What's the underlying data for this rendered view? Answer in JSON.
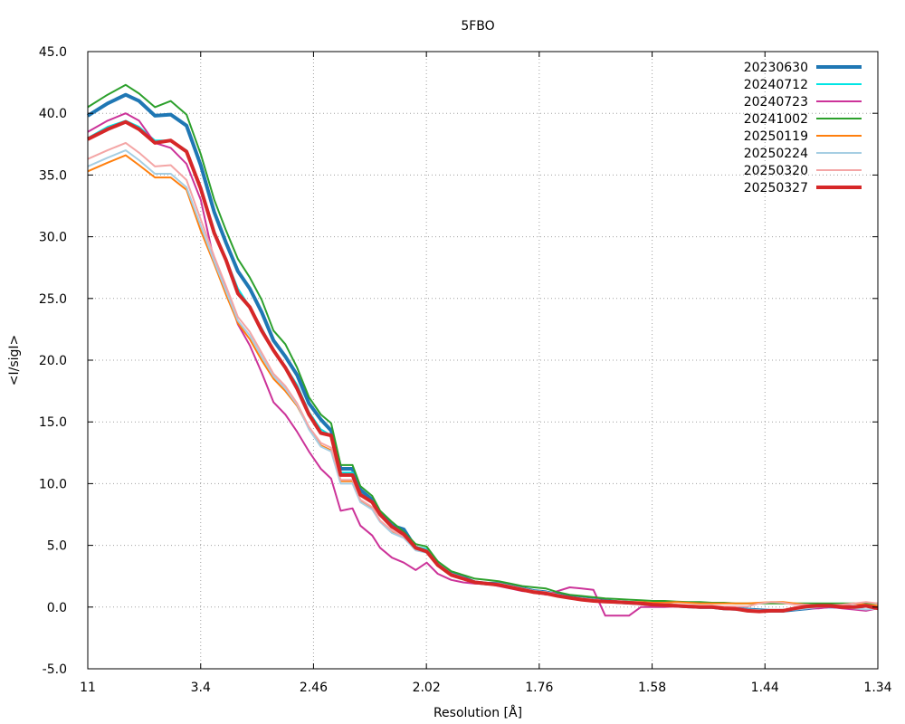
{
  "chart_data": {
    "type": "line",
    "title": "5FBO",
    "xlabel": "Resolution [Å]",
    "ylabel": "<I/sigI>",
    "xlim": [
      0,
      100
    ],
    "ylim": [
      -5,
      45
    ],
    "x_ticks": [
      {
        "pos": 0,
        "label": "11"
      },
      {
        "pos": 14.29,
        "label": "3.4"
      },
      {
        "pos": 28.57,
        "label": "2.46"
      },
      {
        "pos": 42.86,
        "label": "2.02"
      },
      {
        "pos": 57.14,
        "label": "1.76"
      },
      {
        "pos": 71.43,
        "label": "1.58"
      },
      {
        "pos": 85.71,
        "label": "1.44"
      },
      {
        "pos": 100,
        "label": "1.34"
      }
    ],
    "y_ticks": [
      "-5.0",
      "0.0",
      "5.0",
      "10.0",
      "15.0",
      "20.0",
      "25.0",
      "30.0",
      "35.0",
      "40.0",
      "45.0"
    ],
    "grid": true,
    "legend_position": "top-right",
    "series": [
      {
        "name": "20230630",
        "color": "#1f77b4",
        "width": 4,
        "x": [
          0,
          2.5,
          4.8,
          6.5,
          8.5,
          10.5,
          12.5,
          14.3,
          16,
          17.5,
          19,
          20.5,
          22,
          23.5,
          25,
          26.5,
          28,
          29.5,
          30.8,
          32,
          33.5,
          34.5,
          36,
          37,
          38.5,
          40,
          41.5,
          42.9,
          44.3,
          46,
          47.5,
          49,
          50.5,
          52,
          53.5,
          55,
          56.5,
          58,
          59.5,
          61,
          62.5,
          64,
          65.5,
          67,
          68.5,
          70,
          71.5,
          73,
          74.5,
          76,
          77.5,
          79,
          80.5,
          82,
          83.5,
          85,
          86.5,
          88,
          89.5,
          91,
          92.5,
          94,
          95.5,
          97,
          98.5,
          100
        ],
        "y": [
          39.8,
          40.8,
          41.5,
          41,
          39.8,
          39.9,
          39,
          35.8,
          32,
          29.5,
          27.2,
          25.8,
          23.9,
          21.6,
          20.3,
          18.8,
          16.5,
          15.2,
          14.3,
          11.2,
          11.2,
          9.5,
          8.7,
          7.6,
          6.6,
          6.3,
          4.8,
          4.6,
          3.6,
          2.7,
          2.4,
          2,
          1.9,
          1.9,
          1.7,
          1.5,
          1.3,
          1.2,
          1,
          0.8,
          0.7,
          0.6,
          0.5,
          0.4,
          0.35,
          0.3,
          0.2,
          0.2,
          0.1,
          0.05,
          0,
          0,
          -0.1,
          -0.15,
          -0.2,
          -0.25,
          -0.3,
          -0.3,
          -0.2,
          -0.1,
          0,
          0.05,
          0,
          0,
          0.1,
          0
        ]
      },
      {
        "name": "20240712",
        "color": "#00e5e5",
        "width": 2,
        "x": [
          0,
          2.5,
          4.8,
          6.5,
          8.5,
          10.5,
          12.5,
          14.3,
          16,
          17.5,
          19,
          20.5,
          22,
          23.5,
          25,
          26.5,
          28,
          29.5,
          30.8,
          32,
          33.5,
          34.5,
          36,
          37,
          38.5,
          40,
          41.5,
          42.9,
          44.3,
          46,
          47.5,
          49,
          50.5,
          52,
          53.5,
          55,
          56.5,
          58,
          59.5,
          61,
          62.5,
          64,
          65.5,
          67,
          68.5,
          70,
          71.5,
          73,
          74.5,
          76,
          77.5,
          79,
          80.5,
          82,
          83.5,
          85,
          86.5,
          88,
          89.5,
          91,
          92.5,
          94,
          95.5,
          97,
          98.5,
          100
        ],
        "y": [
          38,
          38.9,
          39.4,
          38.9,
          37.8,
          37.8,
          37,
          34,
          30.5,
          28.2,
          25.8,
          24.3,
          22.6,
          20.8,
          19.5,
          18,
          15.8,
          14.4,
          13.9,
          10.9,
          10.9,
          9.2,
          8.5,
          7.4,
          6.5,
          6.1,
          4.9,
          4.7,
          3.6,
          2.7,
          2.4,
          2,
          1.9,
          1.9,
          1.7,
          1.5,
          1.3,
          1.2,
          1,
          0.8,
          0.7,
          0.6,
          0.5,
          0.4,
          0.35,
          0.3,
          0.2,
          0.2,
          0.1,
          0.05,
          0,
          0,
          -0.1,
          -0.15,
          -0.2,
          -0.25,
          -0.3,
          -0.3,
          -0.2,
          -0.1,
          0,
          0.05,
          0,
          0,
          0.1,
          0
        ]
      },
      {
        "name": "20240723",
        "color": "#cc3399",
        "width": 2,
        "x": [
          0,
          2.5,
          4.8,
          6.5,
          8.5,
          10.5,
          12.5,
          14.3,
          16,
          17.5,
          19,
          20.5,
          22,
          23.5,
          25,
          26.5,
          28,
          29.5,
          30.8,
          32,
          33.5,
          34.5,
          36,
          37,
          38.5,
          40,
          41.5,
          42.9,
          44.3,
          46,
          47.5,
          49,
          50.5,
          52,
          53.5,
          55,
          56.5,
          58,
          59.5,
          61,
          62.5,
          64,
          65.5,
          67,
          68.5,
          70,
          71.5,
          73,
          74.5,
          76,
          77.5,
          79,
          80.5,
          82,
          83.5,
          85,
          86.5,
          88,
          89.5,
          91,
          92.5,
          94,
          95.5,
          97,
          98.5,
          100
        ],
        "y": [
          38.5,
          39.4,
          40,
          39.4,
          37.6,
          37.2,
          35.9,
          33,
          28,
          25.8,
          22.9,
          21.2,
          19,
          16.6,
          15.6,
          14.2,
          12.6,
          11.2,
          10.4,
          7.8,
          8,
          6.6,
          5.8,
          4.8,
          4,
          3.6,
          3,
          3.6,
          2.7,
          2.2,
          2,
          1.9,
          1.9,
          1.7,
          1.5,
          1.3,
          1.2,
          1,
          1.3,
          1.6,
          1.5,
          1.4,
          -0.7,
          -0.7,
          -0.7,
          0,
          0,
          0,
          0.05,
          0,
          -0.05,
          0,
          -0.05,
          -0.1,
          -0.2,
          -0.3,
          -0.3,
          -0.25,
          -0.2,
          -0.1,
          -0.1,
          0,
          -0.1,
          -0.2,
          -0.3,
          -0.1
        ]
      },
      {
        "name": "20241002",
        "color": "#2ca02c",
        "width": 2,
        "x": [
          0,
          2.5,
          4.8,
          6.5,
          8.5,
          10.5,
          12.5,
          14.3,
          16,
          17.5,
          19,
          20.5,
          22,
          23.5,
          25,
          26.5,
          28,
          29.5,
          30.8,
          32,
          33.5,
          34.5,
          36,
          37,
          38.5,
          40,
          41.5,
          42.9,
          44.3,
          46,
          47.5,
          49,
          50.5,
          52,
          53.5,
          55,
          56.5,
          58,
          59.5,
          61,
          62.5,
          64,
          65.5,
          67,
          68.5,
          70,
          71.5,
          73,
          74.5,
          76,
          77.5,
          79,
          80.5,
          82,
          83.5,
          85,
          86.5,
          88,
          89.5,
          91,
          92.5,
          94,
          95.5,
          97,
          98.5,
          100
        ],
        "y": [
          40.5,
          41.5,
          42.3,
          41.6,
          40.5,
          41,
          39.9,
          36.7,
          33,
          30.5,
          28.2,
          26.7,
          24.9,
          22.4,
          21.3,
          19.4,
          17,
          15.6,
          14.9,
          11.5,
          11.5,
          9.8,
          9,
          7.8,
          6.9,
          6.1,
          5.1,
          4.9,
          3.7,
          2.9,
          2.6,
          2.3,
          2.2,
          2.1,
          1.9,
          1.7,
          1.6,
          1.5,
          1.2,
          1,
          0.9,
          0.8,
          0.7,
          0.65,
          0.6,
          0.55,
          0.5,
          0.5,
          0.45,
          0.4,
          0.4,
          0.35,
          0.35,
          0.3,
          0.3,
          0.3,
          0.3,
          0.3,
          0.3,
          0.3,
          0.3,
          0.3,
          0.3,
          0.3,
          0.3,
          0.3
        ]
      },
      {
        "name": "20250119",
        "color": "#ff7f0e",
        "width": 2,
        "x": [
          0,
          2.5,
          4.8,
          6.5,
          8.5,
          10.5,
          12.5,
          14.3,
          16,
          17.5,
          19,
          20.5,
          22,
          23.5,
          25,
          26.5,
          28,
          29.5,
          30.8,
          32,
          33.5,
          34.5,
          36,
          37,
          38.5,
          40,
          41.5,
          42.9,
          44.3,
          46,
          47.5,
          49,
          50.5,
          52,
          53.5,
          55,
          56.5,
          58,
          59.5,
          61,
          62.5,
          64,
          65.5,
          67,
          68.5,
          70,
          71.5,
          73,
          74.5,
          76,
          77.5,
          79,
          80.5,
          82,
          83.5,
          85,
          86.5,
          88,
          89.5,
          91,
          92.5,
          94,
          95.5,
          97,
          98.5,
          100
        ],
        "y": [
          35.3,
          36,
          36.6,
          35.8,
          34.8,
          34.8,
          33.8,
          30.5,
          27.8,
          25.3,
          23,
          21.7,
          20,
          18.5,
          17.5,
          16.3,
          14.5,
          13.1,
          12.7,
          10.2,
          10.2,
          8.6,
          8,
          7,
          6.1,
          5.7,
          4.7,
          4.5,
          3.4,
          2.6,
          2.3,
          2,
          1.9,
          1.9,
          1.7,
          1.5,
          1.3,
          1.2,
          1,
          0.8,
          0.7,
          0.6,
          0.5,
          0.45,
          0.4,
          0.4,
          0.35,
          0.35,
          0.4,
          0.35,
          0.3,
          0.3,
          0.3,
          0.3,
          0.3,
          0.35,
          0.4,
          0.4,
          0.3,
          0.2,
          0.1,
          0.1,
          0.2,
          0.3,
          0.2,
          0.1
        ]
      },
      {
        "name": "20250224",
        "color": "#a6cee3",
        "width": 2,
        "x": [
          0,
          2.5,
          4.8,
          6.5,
          8.5,
          10.5,
          12.5,
          14.3,
          16,
          17.5,
          19,
          20.5,
          22,
          23.5,
          25,
          26.5,
          28,
          29.5,
          30.8,
          32,
          33.5,
          34.5,
          36,
          37,
          38.5,
          40,
          41.5,
          42.9,
          44.3,
          46,
          47.5,
          49,
          50.5,
          52,
          53.5,
          55,
          56.5,
          58,
          59.5,
          61,
          62.5,
          64,
          65.5,
          67,
          68.5,
          70,
          71.5,
          73,
          74.5,
          76,
          77.5,
          79,
          80.5,
          82,
          83.5,
          85,
          86.5,
          88,
          89.5,
          91,
          92.5,
          94,
          95.5,
          97,
          98.5,
          100
        ],
        "y": [
          35.7,
          36.4,
          37,
          36.2,
          35.1,
          35.1,
          34,
          30.9,
          28,
          25.6,
          23.2,
          22,
          20.3,
          18.7,
          17.7,
          16.4,
          14.4,
          13,
          12.6,
          10,
          10,
          8.5,
          7.9,
          6.9,
          6,
          5.6,
          4.6,
          4.4,
          3.4,
          2.6,
          2.3,
          2,
          1.9,
          1.9,
          1.7,
          1.5,
          1.3,
          1.2,
          1,
          0.8,
          0.7,
          0.6,
          0.5,
          0.4,
          0.35,
          0.3,
          0.2,
          0.2,
          0.1,
          0.05,
          0,
          0,
          -0.1,
          -0.15,
          -0.2,
          -0.25,
          -0.3,
          -0.3,
          -0.2,
          -0.1,
          0,
          0.05,
          0,
          -0.1,
          -0.2,
          -0.1
        ]
      },
      {
        "name": "20250320",
        "color": "#f4a6a6",
        "width": 2,
        "x": [
          0,
          2.5,
          4.8,
          6.5,
          8.5,
          10.5,
          12.5,
          14.3,
          16,
          17.5,
          19,
          20.5,
          22,
          23.5,
          25,
          26.5,
          28,
          29.5,
          30.8,
          32,
          33.5,
          34.5,
          36,
          37,
          38.5,
          40,
          41.5,
          42.9,
          44.3,
          46,
          47.5,
          49,
          50.5,
          52,
          53.5,
          55,
          56.5,
          58,
          59.5,
          61,
          62.5,
          64,
          65.5,
          67,
          68.5,
          70,
          71.5,
          73,
          74.5,
          76,
          77.5,
          79,
          80.5,
          82,
          83.5,
          85,
          86.5,
          88,
          89.5,
          91,
          92.5,
          94,
          95.5,
          97,
          98.5,
          100
        ],
        "y": [
          36.3,
          37,
          37.6,
          36.8,
          35.7,
          35.8,
          34.6,
          31.4,
          28.4,
          26,
          23.5,
          22.3,
          20.6,
          18.9,
          17.9,
          16.5,
          14.6,
          13.3,
          12.9,
          10.3,
          10.3,
          8.7,
          8.1,
          7,
          6.2,
          5.7,
          4.8,
          4.6,
          3.5,
          2.7,
          2.4,
          2,
          1.9,
          1.9,
          1.7,
          1.5,
          1.3,
          1.2,
          1,
          0.8,
          0.7,
          0.6,
          0.5,
          0.4,
          0.35,
          0.3,
          0.25,
          0.25,
          0.2,
          0.15,
          0.1,
          0.1,
          0.05,
          0.05,
          0.05,
          0.3,
          0.4,
          0.35,
          0.2,
          0.2,
          0.1,
          0.15,
          0.2,
          0.3,
          0.4,
          0.3
        ]
      },
      {
        "name": "20250327",
        "color": "#d62728",
        "width": 4,
        "x": [
          0,
          2.5,
          4.8,
          6.5,
          8.5,
          10.5,
          12.5,
          14.3,
          16,
          17.5,
          19,
          20.5,
          22,
          23.5,
          25,
          26.5,
          28,
          29.5,
          30.8,
          32,
          33.5,
          34.5,
          36,
          37,
          38.5,
          40,
          41.5,
          42.9,
          44.3,
          46,
          47.5,
          49,
          50.5,
          52,
          53.5,
          55,
          56.5,
          58,
          59.5,
          61,
          62.5,
          64,
          65.5,
          67,
          68.5,
          70,
          71.5,
          73,
          74.5,
          76,
          77.5,
          79,
          80.5,
          82,
          83.5,
          85,
          86.5,
          88,
          89.5,
          91,
          92.5,
          94,
          95.5,
          97,
          98.5,
          100
        ],
        "y": [
          37.9,
          38.7,
          39.3,
          38.7,
          37.6,
          37.8,
          36.9,
          33.9,
          30.3,
          28.1,
          25.4,
          24.3,
          22.4,
          20.8,
          19.4,
          17.7,
          15.6,
          14.1,
          13.9,
          10.7,
          10.7,
          9.1,
          8.5,
          7.5,
          6.5,
          5.9,
          4.8,
          4.5,
          3.4,
          2.6,
          2.3,
          2,
          1.9,
          1.8,
          1.6,
          1.4,
          1.2,
          1.1,
          0.9,
          0.75,
          0.6,
          0.5,
          0.45,
          0.4,
          0.35,
          0.3,
          0.2,
          0.15,
          0.1,
          0.05,
          0,
          0,
          -0.1,
          -0.15,
          -0.3,
          -0.35,
          -0.3,
          -0.3,
          -0.1,
          0.05,
          0.1,
          0.1,
          0,
          0,
          0.1,
          -0.1
        ]
      }
    ]
  }
}
